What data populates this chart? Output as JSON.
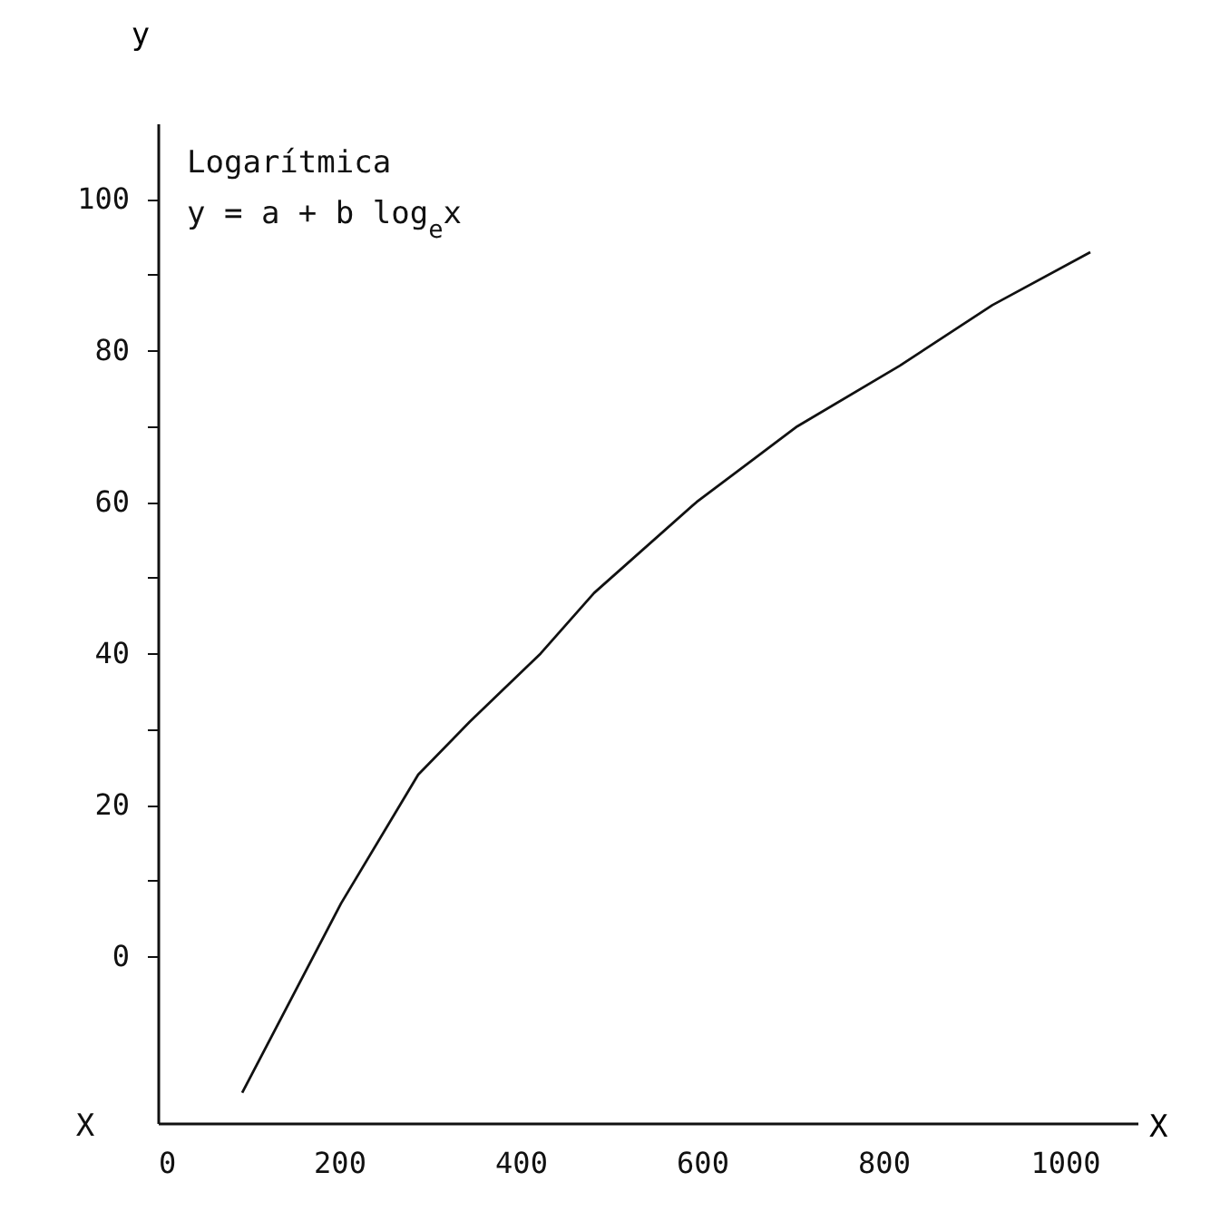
{
  "chart_data": {
    "type": "line",
    "ylabel": "y",
    "xlabel": "X",
    "annotations": [
      "Logarítmica",
      "y = a + b log$_{e}$x",
      "X"
    ],
    "x": [
      93,
      202,
      287,
      344,
      422,
      481,
      594,
      705,
      818,
      920,
      1028
    ],
    "series": [
      {
        "color": "#111111",
        "values": [
          -18,
          7,
          24,
          31,
          40,
          48,
          60,
          70,
          78,
          86,
          93
        ]
      }
    ],
    "xlim": [
      0,
      1080
    ],
    "xticks": [
      0,
      200,
      400,
      600,
      800,
      1000
    ],
    "ylim": [
      -22,
      110
    ],
    "yticks": [
      0,
      {
        "value": 10,
        "label": null
      },
      20,
      {
        "value": 30,
        "label": null
      },
      40,
      {
        "value": 50,
        "label": null
      },
      60,
      {
        "value": 70,
        "label": null
      },
      80,
      {
        "value": 90,
        "label": null
      },
      100
    ],
    "grid": false,
    "marker": "none",
    "line_style": "solid"
  }
}
